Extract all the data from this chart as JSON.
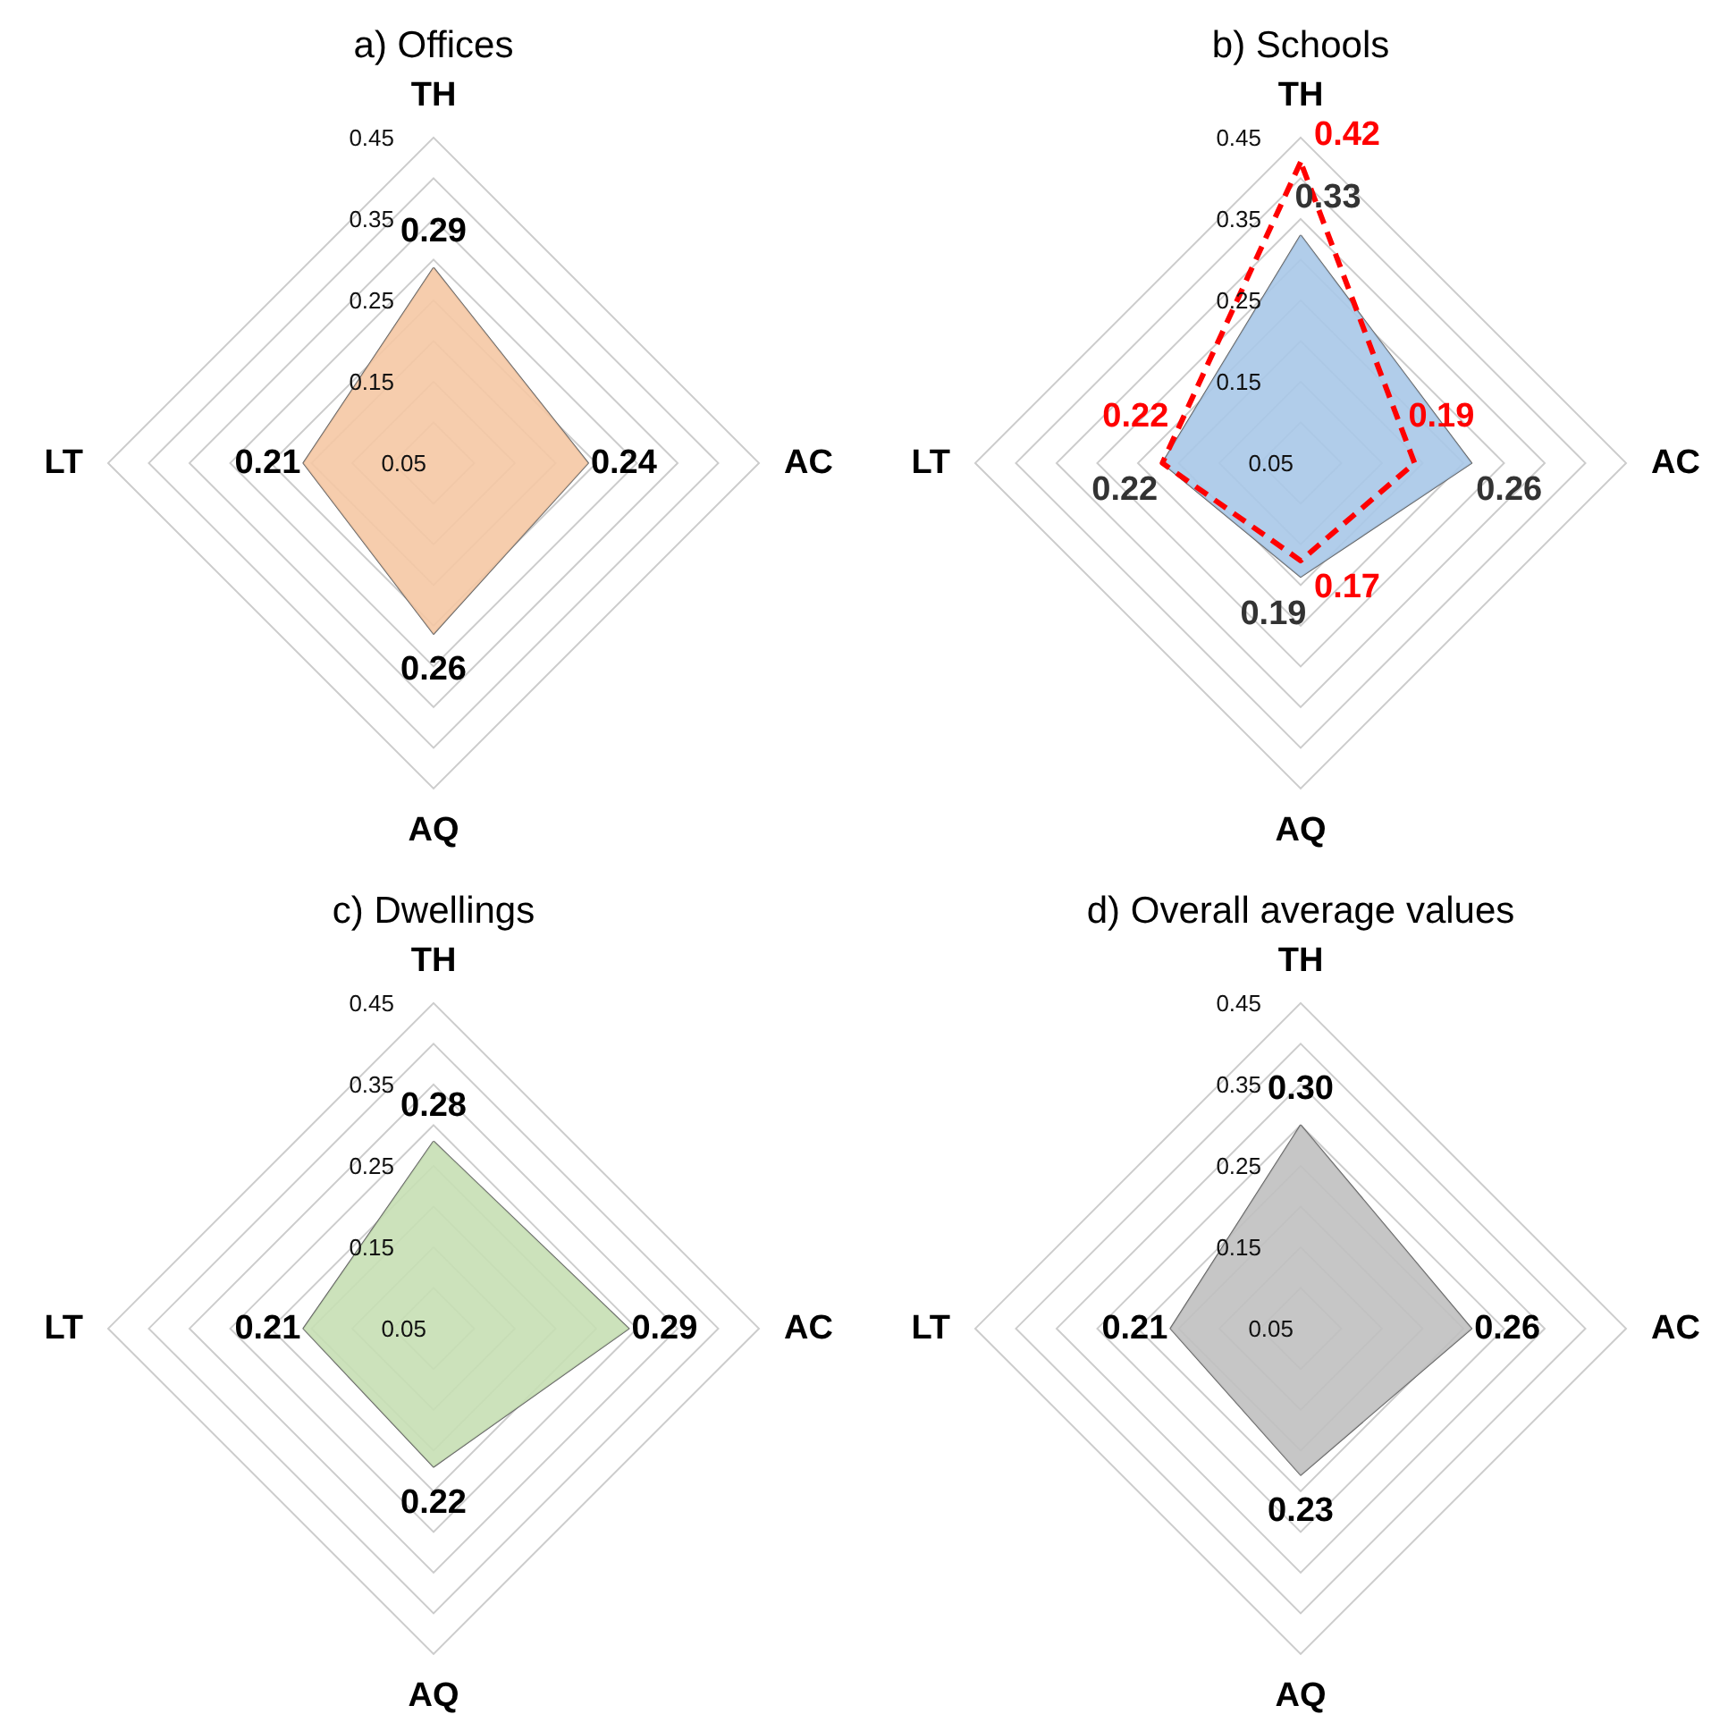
{
  "chart_data": [
    {
      "type": "radar",
      "title": "a) Offices",
      "categories": [
        "TH",
        "AC",
        "AQ",
        "LT"
      ],
      "ylim": [
        0.05,
        0.45
      ],
      "yticks": [
        0.05,
        0.15,
        0.25,
        0.35,
        0.45
      ],
      "marker": "none",
      "series": [
        {
          "color": "#f5c8a4",
          "values": [
            0.29,
            0.24,
            0.26,
            0.21
          ],
          "value_labels": [
            "0.29",
            "0.24",
            "0.26",
            "0.21"
          ]
        }
      ]
    },
    {
      "type": "radar",
      "title": "b) Schools",
      "categories": [
        "TH",
        "AC",
        "AQ",
        "LT"
      ],
      "ylim": [
        0.05,
        0.45
      ],
      "yticks": [
        0.05,
        0.15,
        0.25,
        0.35,
        0.45
      ],
      "marker": "none",
      "series": [
        {
          "color": "#a8c8e8",
          "values": [
            0.33,
            0.26,
            0.19,
            0.22
          ],
          "value_labels": [
            "0.33",
            "0.26",
            "0.19",
            "0.22"
          ]
        },
        {
          "color": "#ff0000",
          "line_style": "dashed",
          "values": [
            0.42,
            0.19,
            0.17,
            0.22
          ],
          "value_labels": [
            "0.42",
            "0.19",
            "0.17",
            "0.22"
          ]
        }
      ]
    },
    {
      "type": "radar",
      "title": "c) Dwellings",
      "categories": [
        "TH",
        "AC",
        "AQ",
        "LT"
      ],
      "ylim": [
        0.05,
        0.45
      ],
      "yticks": [
        0.05,
        0.15,
        0.25,
        0.35,
        0.45
      ],
      "marker": "none",
      "series": [
        {
          "color": "#c6dfb4",
          "values": [
            0.28,
            0.29,
            0.22,
            0.21
          ],
          "value_labels": [
            "0.28",
            "0.29",
            "0.22",
            "0.21"
          ]
        }
      ]
    },
    {
      "type": "radar",
      "title": "d) Overall average values",
      "categories": [
        "TH",
        "AC",
        "AQ",
        "LT"
      ],
      "ylim": [
        0.05,
        0.45
      ],
      "yticks": [
        0.05,
        0.15,
        0.25,
        0.35,
        0.45
      ],
      "marker": "none",
      "series": [
        {
          "color": "#c0c0c0",
          "values": [
            0.3,
            0.26,
            0.23,
            0.21
          ],
          "value_labels": [
            "0.30",
            "0.26",
            "0.23",
            "0.21"
          ]
        }
      ]
    }
  ]
}
